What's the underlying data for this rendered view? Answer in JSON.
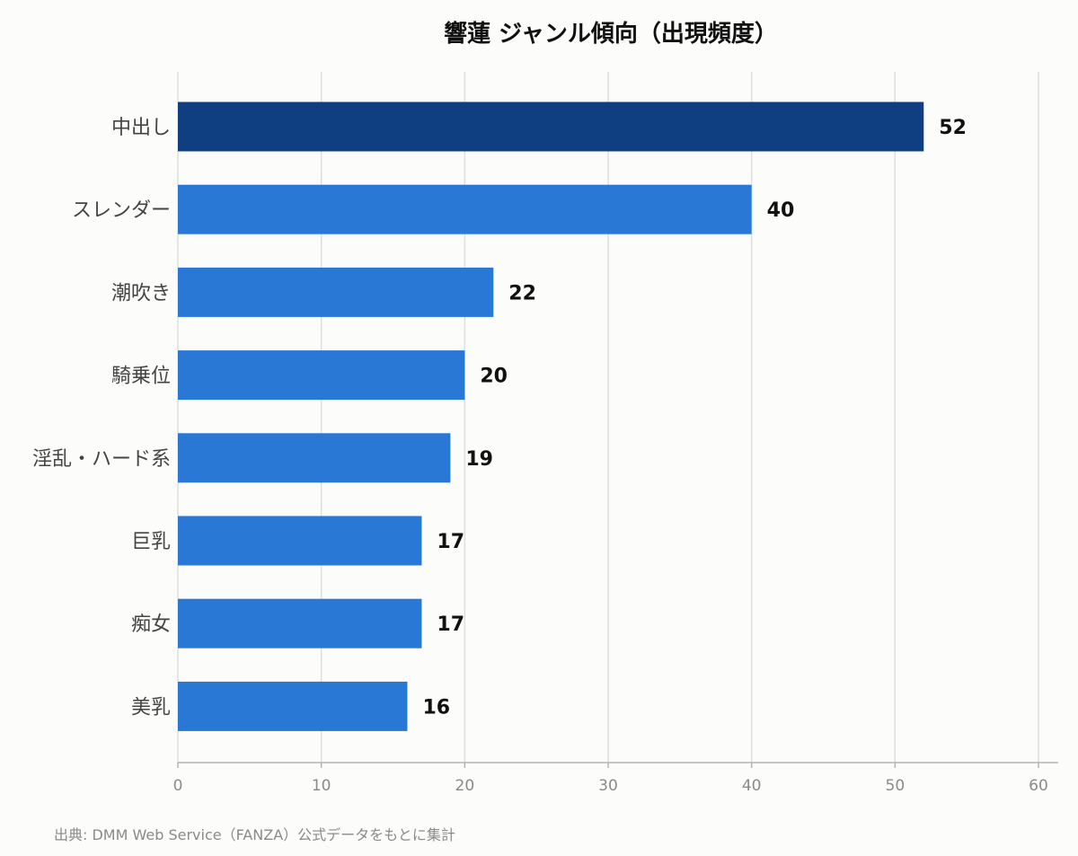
{
  "chart_data": {
    "type": "bar",
    "orientation": "horizontal",
    "title": "響蓮 ジャンル傾向（出現頻度）",
    "categories": [
      "中出し",
      "スレンダー",
      "潮吹き",
      "騎乗位",
      "淫乱・ハード系",
      "巨乳",
      "痴女",
      "美乳"
    ],
    "values": [
      52,
      40,
      22,
      20,
      19,
      17,
      17,
      16
    ],
    "xlim": [
      0,
      60
    ],
    "xticks": [
      "0",
      "10",
      "20",
      "30",
      "40",
      "50",
      "60"
    ],
    "grid": true,
    "highlight_index": 0,
    "colors": {
      "highlight": "#0f3f80",
      "bar": "#2a78d6"
    }
  },
  "source": "出典: DMM Web Service（FANZA）公式データをもとに集計"
}
